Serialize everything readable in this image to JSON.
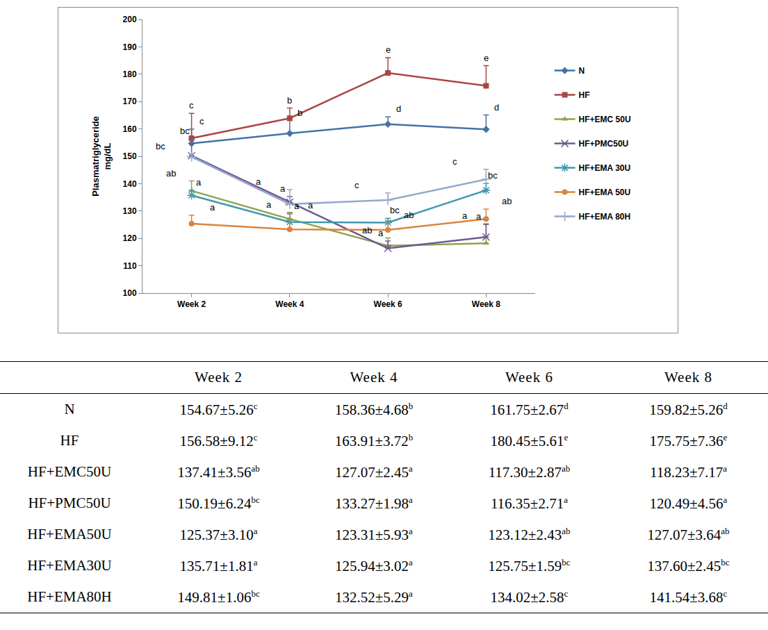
{
  "chart_data": {
    "type": "line",
    "y_label": "Plasmatriglyceride\nmg/dL",
    "categories": [
      "Week 2",
      "Week 4",
      "Week 6",
      "Week 8"
    ],
    "ylim": [
      100,
      200
    ],
    "yticks": [
      100,
      110,
      120,
      130,
      140,
      150,
      160,
      170,
      180,
      190,
      200
    ],
    "grid": false,
    "legend": "right",
    "series": [
      {
        "name": "N",
        "color": "#4572a7",
        "marker": "diamond",
        "values": [
          154.67,
          158.36,
          161.75,
          159.82
        ],
        "error": [
          5.26,
          4.68,
          2.67,
          5.26
        ],
        "letters": [
          "c",
          "b",
          "d",
          "d"
        ]
      },
      {
        "name": "HF",
        "color": "#aa4643",
        "marker": "square",
        "values": [
          156.58,
          163.91,
          180.45,
          175.75
        ],
        "error": [
          9.12,
          3.72,
          5.61,
          7.36
        ],
        "letters": [
          "c",
          "b",
          "e",
          "e"
        ]
      },
      {
        "name": "HF+EMC 50U",
        "color": "#89a54e",
        "marker": "triangle",
        "values": [
          137.41,
          127.07,
          117.3,
          118.23
        ],
        "error": [
          3.56,
          2.45,
          2.87,
          7.17
        ],
        "letters": [
          "ab",
          "a",
          "ab",
          "a"
        ]
      },
      {
        "name": "HF+PMC50U",
        "color": "#71588f",
        "marker": "x",
        "values": [
          150.19,
          133.27,
          116.35,
          120.49
        ],
        "error": [
          6.24,
          1.98,
          2.71,
          4.56
        ],
        "letters": [
          "bc",
          "a",
          "a",
          "a"
        ]
      },
      {
        "name": "HF+EMA 30U",
        "color": "#4198af",
        "marker": "asterisk",
        "values": [
          135.71,
          125.94,
          125.75,
          137.6
        ],
        "error": [
          1.81,
          3.02,
          1.59,
          2.45
        ],
        "letters": [
          "a",
          "a",
          "bc",
          "bc"
        ]
      },
      {
        "name": "HF+EMA 50U",
        "color": "#db843d",
        "marker": "circle",
        "values": [
          125.37,
          123.31,
          123.12,
          127.07
        ],
        "error": [
          3.1,
          5.93,
          2.43,
          3.64
        ],
        "letters": [
          "a",
          "a",
          "ab",
          "ab"
        ]
      },
      {
        "name": "HF+EMA 80H",
        "color": "#93a9cf",
        "marker": "cross",
        "values": [
          149.81,
          132.52,
          134.02,
          141.54
        ],
        "error": [
          1.06,
          5.29,
          2.58,
          3.68
        ],
        "letters": [
          "bc",
          "a",
          "c",
          "c"
        ]
      }
    ]
  },
  "table": {
    "columns": [
      "Week 2",
      "Week 4",
      "Week 6",
      "Week 8"
    ],
    "rows": [
      {
        "label": "N",
        "cells": [
          {
            "text": "154.67±5.26",
            "sup": "c"
          },
          {
            "text": "158.36±4.68",
            "sup": "b"
          },
          {
            "text": "161.75±2.67",
            "sup": "d"
          },
          {
            "text": "159.82±5.26",
            "sup": "d"
          }
        ]
      },
      {
        "label": "HF",
        "cells": [
          {
            "text": "156.58±9.12",
            "sup": "c"
          },
          {
            "text": "163.91±3.72",
            "sup": "b"
          },
          {
            "text": "180.45±5.61",
            "sup": "e"
          },
          {
            "text": "175.75±7.36",
            "sup": "e"
          }
        ]
      },
      {
        "label": "HF+EMC50U",
        "cells": [
          {
            "text": "137.41±3.56",
            "sup": "ab"
          },
          {
            "text": "127.07±2.45",
            "sup": "a"
          },
          {
            "text": "117.30±2.87",
            "sup": "ab"
          },
          {
            "text": "118.23±7.17",
            "sup": "a"
          }
        ]
      },
      {
        "label": "HF+PMC50U",
        "cells": [
          {
            "text": "150.19±6.24",
            "sup": "bc"
          },
          {
            "text": "133.27±1.98",
            "sup": "a"
          },
          {
            "text": "116.35±2.71",
            "sup": "a"
          },
          {
            "text": "120.49±4.56",
            "sup": "a"
          }
        ]
      },
      {
        "label": "HF+EMA50U",
        "cells": [
          {
            "text": "125.37±3.10",
            "sup": "a"
          },
          {
            "text": "123.31±5.93",
            "sup": "a"
          },
          {
            "text": "123.12±2.43",
            "sup": "ab"
          },
          {
            "text": "127.07±3.64",
            "sup": "ab"
          }
        ]
      },
      {
        "label": "HF+EMA30U",
        "cells": [
          {
            "text": "135.71±1.81",
            "sup": "a"
          },
          {
            "text": "125.94±3.02",
            "sup": "a"
          },
          {
            "text": "125.75±1.59",
            "sup": "bc"
          },
          {
            "text": "137.60±2.45",
            "sup": "bc"
          }
        ]
      },
      {
        "label": "HF+EMA80H",
        "cells": [
          {
            "text": "149.81±1.06",
            "sup": "bc"
          },
          {
            "text": "132.52±5.29",
            "sup": "a"
          },
          {
            "text": "134.02±2.58",
            "sup": "c"
          },
          {
            "text": "141.54±3.68",
            "sup": "c"
          }
        ]
      }
    ]
  }
}
